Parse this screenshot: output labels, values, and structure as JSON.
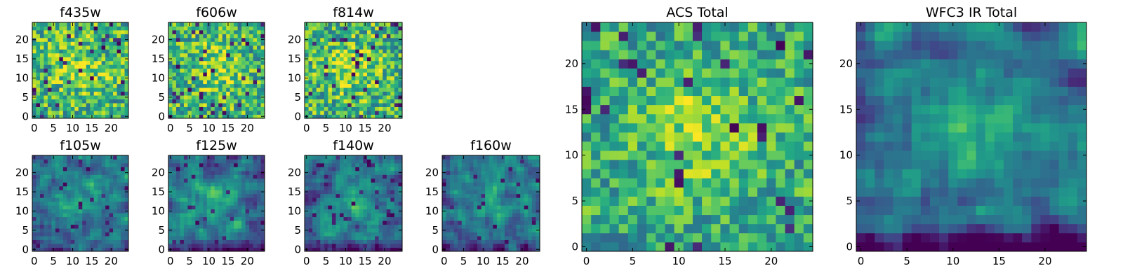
{
  "chart_data": [
    {
      "type": "heatmap",
      "title": "f435w",
      "grid": [
        25,
        25
      ],
      "colormap": "viridis",
      "xticks": [
        0,
        5,
        10,
        15,
        20
      ],
      "yticks": [
        0,
        5,
        10,
        15,
        20
      ],
      "xlim": [
        -0.5,
        24.5
      ],
      "ylim": [
        -0.5,
        24.5
      ],
      "seed": 11,
      "mode": "noisy"
    },
    {
      "type": "heatmap",
      "title": "f606w",
      "grid": [
        25,
        25
      ],
      "colormap": "viridis",
      "xticks": [
        0,
        5,
        10,
        15,
        20
      ],
      "yticks": [
        0,
        5,
        10,
        15,
        20
      ],
      "xlim": [
        -0.5,
        24.5
      ],
      "ylim": [
        -0.5,
        24.5
      ],
      "seed": 23,
      "mode": "noisy"
    },
    {
      "type": "heatmap",
      "title": "f814w",
      "grid": [
        25,
        25
      ],
      "colormap": "viridis",
      "xticks": [
        0,
        5,
        10,
        15,
        20
      ],
      "yticks": [
        0,
        5,
        10,
        15,
        20
      ],
      "xlim": [
        -0.5,
        24.5
      ],
      "ylim": [
        -0.5,
        24.5
      ],
      "seed": 37,
      "mode": "noisy"
    },
    {
      "type": "heatmap",
      "title": "f105w",
      "grid": [
        25,
        25
      ],
      "colormap": "viridis",
      "xticks": [
        0,
        5,
        10,
        15,
        20
      ],
      "yticks": [
        0,
        5,
        10,
        15,
        20
      ],
      "xlim": [
        -0.5,
        24.5
      ],
      "ylim": [
        -0.5,
        24.5
      ],
      "seed": 41,
      "mode": "smooth"
    },
    {
      "type": "heatmap",
      "title": "f125w",
      "grid": [
        25,
        25
      ],
      "colormap": "viridis",
      "xticks": [
        0,
        5,
        10,
        15,
        20
      ],
      "yticks": [
        0,
        5,
        10,
        15,
        20
      ],
      "xlim": [
        -0.5,
        24.5
      ],
      "ylim": [
        -0.5,
        24.5
      ],
      "seed": 53,
      "mode": "smooth"
    },
    {
      "type": "heatmap",
      "title": "f140w",
      "grid": [
        25,
        25
      ],
      "colormap": "viridis",
      "xticks": [
        0,
        5,
        10,
        15,
        20
      ],
      "yticks": [
        0,
        5,
        10,
        15,
        20
      ],
      "xlim": [
        -0.5,
        24.5
      ],
      "ylim": [
        -0.5,
        24.5
      ],
      "seed": 67,
      "mode": "smooth"
    },
    {
      "type": "heatmap",
      "title": "f160w",
      "grid": [
        25,
        25
      ],
      "colormap": "viridis",
      "xticks": [
        0,
        5,
        10,
        15,
        20
      ],
      "yticks": [
        0,
        5,
        10,
        15,
        20
      ],
      "xlim": [
        -0.5,
        24.5
      ],
      "ylim": [
        -0.5,
        24.5
      ],
      "seed": 79,
      "mode": "smooth"
    },
    {
      "type": "heatmap",
      "title": "ACS Total",
      "grid": [
        25,
        25
      ],
      "colormap": "viridis",
      "xticks": [
        0,
        5,
        10,
        15,
        20
      ],
      "yticks": [
        0,
        5,
        10,
        15,
        20
      ],
      "xlim": [
        -0.5,
        24.5
      ],
      "ylim": [
        -0.5,
        24.5
      ],
      "seed": 97,
      "mode": "acs"
    },
    {
      "type": "heatmap",
      "title": "WFC3 IR Total",
      "grid": [
        25,
        25
      ],
      "colormap": "viridis",
      "xticks": [
        0,
        5,
        10,
        15,
        20
      ],
      "yticks": [
        0,
        5,
        10,
        15,
        20
      ],
      "xlim": [
        -0.5,
        24.5
      ],
      "ylim": [
        -0.5,
        24.5
      ],
      "seed": 113,
      "mode": "ir"
    }
  ]
}
